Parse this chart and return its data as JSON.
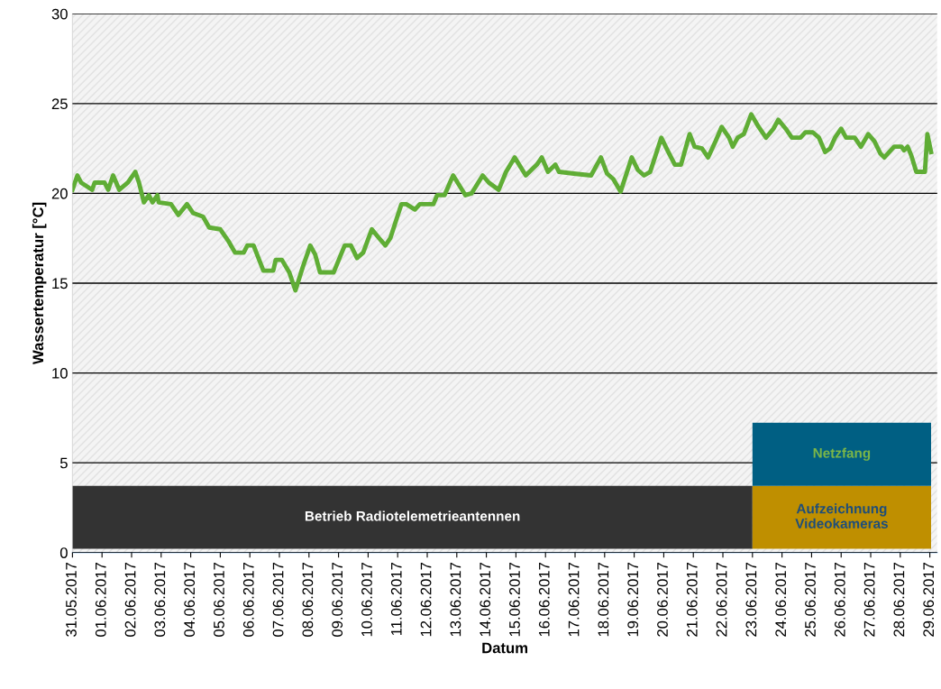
{
  "chart_data": {
    "type": "line",
    "ylabel": "Wassertemperatur [°C]",
    "xlabel": "Datum",
    "ylim": [
      0,
      30
    ],
    "yticks": [
      0,
      5,
      10,
      15,
      20,
      25,
      30
    ],
    "xlim": [
      "2017-05-31",
      "2017-06-29T06:00"
    ],
    "xticks": [
      {
        "value": "2017-05-31",
        "label": "31.05.2017"
      },
      {
        "value": "2017-06-01",
        "label": "01.06.2017"
      },
      {
        "value": "2017-06-02",
        "label": "02.06.2017"
      },
      {
        "value": "2017-06-03",
        "label": "03.06.2017"
      },
      {
        "value": "2017-06-04",
        "label": "04.06.2017"
      },
      {
        "value": "2017-06-05",
        "label": "05.06.2017"
      },
      {
        "value": "2017-06-06",
        "label": "06.06.2017"
      },
      {
        "value": "2017-06-07",
        "label": "07.06.2017"
      },
      {
        "value": "2017-06-08",
        "label": "08.06.2017"
      },
      {
        "value": "2017-06-09",
        "label": "09.06.2017"
      },
      {
        "value": "2017-06-10",
        "label": "10.06.2017"
      },
      {
        "value": "2017-06-11",
        "label": "11.06.2017"
      },
      {
        "value": "2017-06-12",
        "label": "12.06.2017"
      },
      {
        "value": "2017-06-13",
        "label": "13.06.2017"
      },
      {
        "value": "2017-06-14",
        "label": "14.06.2017"
      },
      {
        "value": "2017-06-15",
        "label": "15.06.2017"
      },
      {
        "value": "2017-06-16",
        "label": "16.06.2017"
      },
      {
        "value": "2017-06-17",
        "label": "17.06.2017"
      },
      {
        "value": "2017-06-18",
        "label": "18.06.2017"
      },
      {
        "value": "2017-06-19",
        "label": "19.06.2017"
      },
      {
        "value": "2017-06-20",
        "label": "20.06.2017"
      },
      {
        "value": "2017-06-21",
        "label": "21.06.2017"
      },
      {
        "value": "2017-06-22",
        "label": "22.06.2017"
      },
      {
        "value": "2017-06-23",
        "label": "23.06.2017"
      },
      {
        "value": "2017-06-24",
        "label": "24.06.2017"
      },
      {
        "value": "2017-06-25",
        "label": "25.06.2017"
      },
      {
        "value": "2017-06-26",
        "label": "26.06.2017"
      },
      {
        "value": "2017-06-27",
        "label": "27.06.2017"
      },
      {
        "value": "2017-06-28",
        "label": "28.06.2017"
      },
      {
        "value": "2017-06-29",
        "label": "29.06.2017"
      }
    ],
    "grid": "y",
    "marker": "none",
    "line_style": "solid",
    "series": [
      {
        "color": "#5fad35",
        "x": [
          "2017-05-31T00:00",
          "2017-05-31T04:00",
          "2017-05-31T07:00",
          "2017-05-31T16:00",
          "2017-05-31T18:00",
          "2017-06-01T02:00",
          "2017-06-01T05:00",
          "2017-06-01T09:00",
          "2017-06-01T14:00",
          "2017-06-01T21:00",
          "2017-06-02T03:00",
          "2017-06-02T06:00",
          "2017-06-02T10:00",
          "2017-06-02T14:00",
          "2017-06-02T17:00",
          "2017-06-02T21:00",
          "2017-06-02T22:00",
          "2017-06-03T08:00",
          "2017-06-03T14:00",
          "2017-06-03T21:00",
          "2017-06-04T02:00",
          "2017-06-04T10:00",
          "2017-06-04T15:00",
          "2017-06-05T00:00",
          "2017-06-05T07:00",
          "2017-06-05T12:00",
          "2017-06-05T19:00",
          "2017-06-05T22:00",
          "2017-06-06T03:00",
          "2017-06-06T11:00",
          "2017-06-06T19:00",
          "2017-06-06T21:00",
          "2017-06-07T02:00",
          "2017-06-07T08:00",
          "2017-06-07T13:00",
          "2017-06-07T19:00",
          "2017-06-08T01:00",
          "2017-06-08T05:00",
          "2017-06-08T09:00",
          "2017-06-08T20:00",
          "2017-06-09T05:00",
          "2017-06-09T10:00",
          "2017-06-09T15:00",
          "2017-06-09T20:00",
          "2017-06-10T03:00",
          "2017-06-10T09:00",
          "2017-06-10T14:00",
          "2017-06-10T18:00",
          "2017-06-11T03:00",
          "2017-06-11T07:00",
          "2017-06-11T14:00",
          "2017-06-11T18:00",
          "2017-06-12T05:00",
          "2017-06-12T08:00",
          "2017-06-12T14:00",
          "2017-06-12T21:00",
          "2017-06-13T07:00",
          "2017-06-13T12:00",
          "2017-06-13T21:00",
          "2017-06-14T02:00",
          "2017-06-14T10:00",
          "2017-06-14T16:00",
          "2017-06-14T23:00",
          "2017-06-15T08:00",
          "2017-06-15T17:00",
          "2017-06-15T21:00",
          "2017-06-16T02:00",
          "2017-06-16T08:00",
          "2017-06-16T11:00",
          "2017-06-16T23:00",
          "2017-06-17T13:00",
          "2017-06-17T21:00",
          "2017-06-18T02:00",
          "2017-06-18T07:00",
          "2017-06-18T13:00",
          "2017-06-18T22:00",
          "2017-06-19T03:00",
          "2017-06-19T08:00",
          "2017-06-19T13:00",
          "2017-06-19T22:00",
          "2017-06-20T03:00",
          "2017-06-20T09:00",
          "2017-06-20T14:00",
          "2017-06-20T21:00",
          "2017-06-21T01:00",
          "2017-06-21T07:00",
          "2017-06-21T12:00",
          "2017-06-21T18:00",
          "2017-06-21T23:00",
          "2017-06-22T05:00",
          "2017-06-22T08:00",
          "2017-06-22T12:00",
          "2017-06-22T17:00",
          "2017-06-22T23:00",
          "2017-06-23T05:00",
          "2017-06-23T11:00",
          "2017-06-23T17:00",
          "2017-06-23T21:00",
          "2017-06-24T03:00",
          "2017-06-24T08:00",
          "2017-06-24T15:00",
          "2017-06-24T19:00",
          "2017-06-25T01:00",
          "2017-06-25T06:00",
          "2017-06-25T11:00",
          "2017-06-25T15:00",
          "2017-06-25T19:00",
          "2017-06-26T00:00",
          "2017-06-26T04:00",
          "2017-06-26T11:00",
          "2017-06-26T16:00",
          "2017-06-26T22:00",
          "2017-06-27T03:00",
          "2017-06-27T08:00",
          "2017-06-27T11:00",
          "2017-06-27T19:00",
          "2017-06-28T01:00",
          "2017-06-28T03:00",
          "2017-06-28T06:00",
          "2017-06-28T09:00",
          "2017-06-28T13:00",
          "2017-06-28T20:00",
          "2017-06-28T22:00",
          "2017-06-29T01:00"
        ],
        "values": [
          20.2,
          21.0,
          20.6,
          20.2,
          20.6,
          20.6,
          20.2,
          21.0,
          20.2,
          20.6,
          21.2,
          20.6,
          19.5,
          19.9,
          19.5,
          19.9,
          19.5,
          19.4,
          18.8,
          19.4,
          18.9,
          18.7,
          18.1,
          18.0,
          17.3,
          16.7,
          16.7,
          17.1,
          17.1,
          15.7,
          15.7,
          16.3,
          16.3,
          15.6,
          14.6,
          15.9,
          17.1,
          16.6,
          15.6,
          15.6,
          17.1,
          17.1,
          16.4,
          16.7,
          18.0,
          17.5,
          17.1,
          17.5,
          19.4,
          19.4,
          19.1,
          19.4,
          19.4,
          19.9,
          19.9,
          21.0,
          19.9,
          20.0,
          21.0,
          20.6,
          20.2,
          21.2,
          22.0,
          21.0,
          21.6,
          22.0,
          21.2,
          21.6,
          21.2,
          21.1,
          21.0,
          22.0,
          21.1,
          20.8,
          20.1,
          22.0,
          21.3,
          21.0,
          21.2,
          23.1,
          22.4,
          21.6,
          21.6,
          23.3,
          22.6,
          22.5,
          22.0,
          22.9,
          23.7,
          23.1,
          22.6,
          23.1,
          23.3,
          24.4,
          23.7,
          23.1,
          23.6,
          24.1,
          23.6,
          23.1,
          23.1,
          23.4,
          23.4,
          23.1,
          22.3,
          22.5,
          23.1,
          23.6,
          23.1,
          23.1,
          22.6,
          23.3,
          22.9,
          22.2,
          22.0,
          22.6,
          22.6,
          22.4,
          22.6,
          22.1,
          21.2,
          21.2,
          23.3,
          22.3
        ]
      }
    ],
    "bands": [
      {
        "axis": "x",
        "from": "2017-05-31",
        "to": "2017-06-23",
        "label": "Betrieb Radiotelemetrieantennen",
        "color": "#333333"
      },
      {
        "axis": "x",
        "from": "2017-06-23",
        "to": "2017-06-29T01:00",
        "label": "Aufzeichnung\nVideokameras",
        "color": "#bf8f00"
      },
      {
        "axis": "x",
        "from": "2017-06-23",
        "to": "2017-06-29T01:00",
        "label": "Netzfang",
        "color": "#005f83"
      }
    ]
  }
}
